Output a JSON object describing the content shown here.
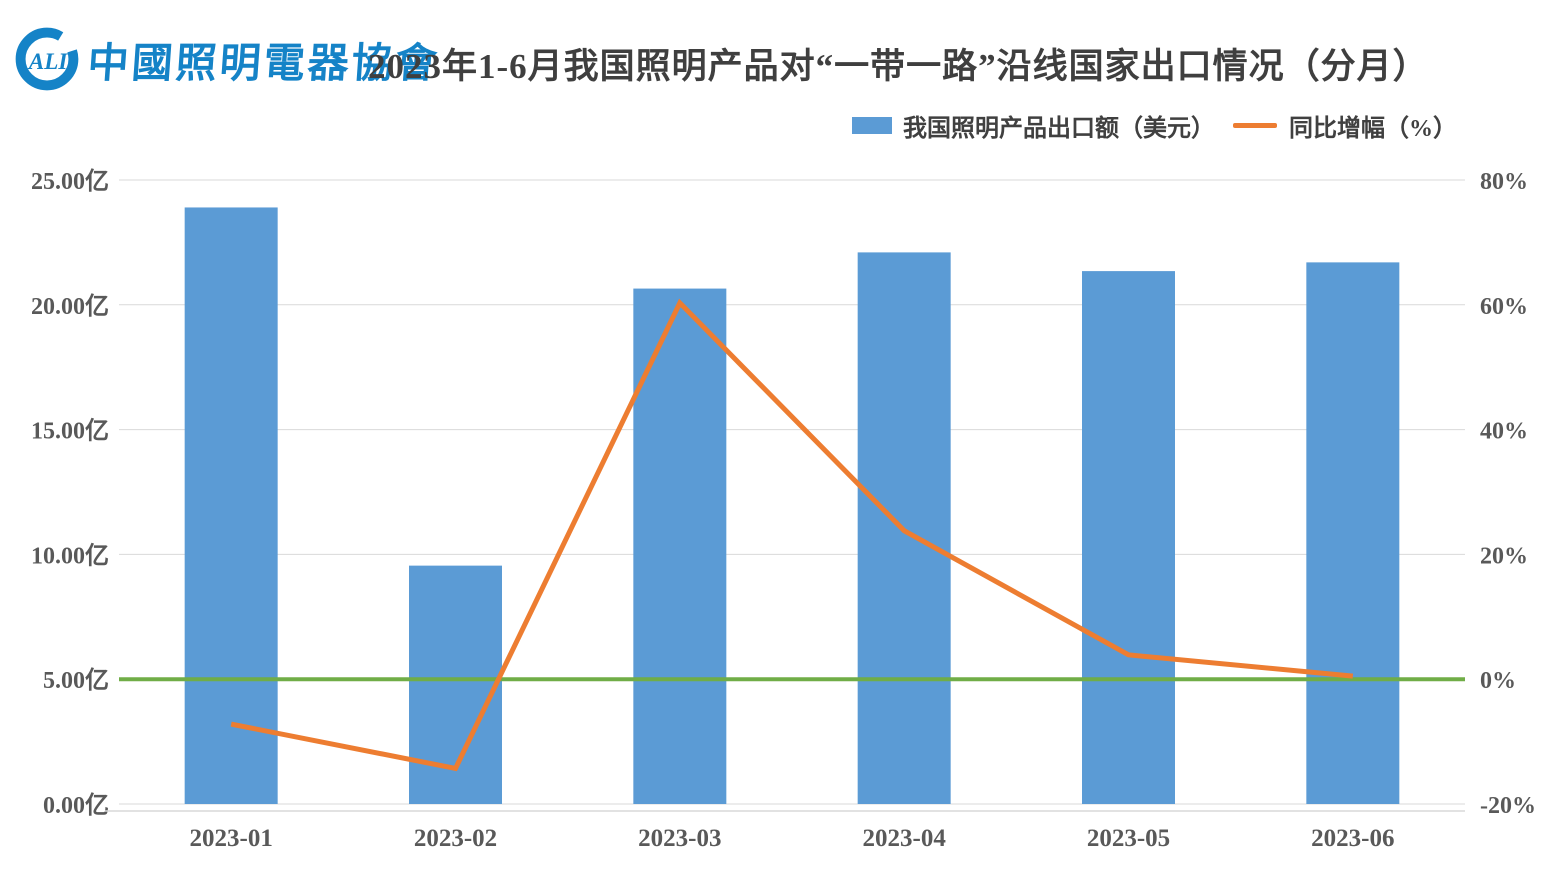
{
  "brand": {
    "abbr": "ALI",
    "name": "中國照明電器協會"
  },
  "header": {
    "title": "2023年1-6月我国照明产品对“一带一路”沿线国家出口情况（分月）"
  },
  "legend": {
    "bar_label": "我国照明产品出口额（美元）",
    "line_label": "同比增幅（%）"
  },
  "colors": {
    "bar": "#5B9BD5",
    "line": "#ED7D31",
    "zero_line": "#70AD47",
    "brand_blue": "#1583C7",
    "title_text": "#3F3F3F",
    "axis_text": "#595959",
    "gridline": "#D9D9D9"
  },
  "chart_data": {
    "type": "bar",
    "title": "2023年1-6月我国照明产品对“一带一路”沿线国家出口情况（分月）",
    "categories": [
      "2023-01",
      "2023-02",
      "2023-03",
      "2023-04",
      "2023-05",
      "2023-06"
    ],
    "series": [
      {
        "name": "我国照明产品出口额（美元）",
        "type": "bar",
        "axis": "left",
        "unit": "亿美元",
        "values": [
          23.9,
          9.55,
          20.65,
          22.1,
          21.35,
          21.7
        ]
      },
      {
        "name": "同比增幅（%）",
        "type": "line",
        "axis": "right",
        "unit": "%",
        "values": [
          -7.2,
          -14.3,
          60.3,
          23.8,
          3.9,
          0.5
        ]
      }
    ],
    "left_axis": {
      "min": 0,
      "max": 25,
      "tick_step": 5,
      "tick_labels": [
        "0.00亿",
        "5.00亿",
        "10.00亿",
        "15.00亿",
        "20.00亿",
        "25.00亿"
      ]
    },
    "right_axis": {
      "min": -20,
      "max": 80,
      "tick_step": 20,
      "tick_labels": [
        "-20%",
        "0%",
        "20%",
        "40%",
        "60%",
        "80%"
      ]
    },
    "zero_reference_line": {
      "axis": "right",
      "value": 0
    },
    "grid": "horizontal",
    "legend_position": "top"
  }
}
